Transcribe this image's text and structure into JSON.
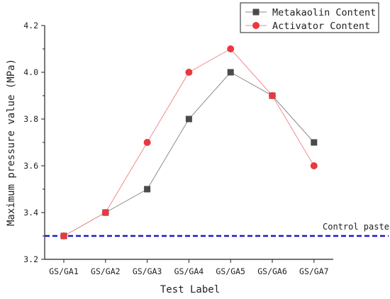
{
  "chart_data": {
    "type": "line",
    "title": "",
    "xlabel": "Test Label",
    "ylabel": "Maximum pressure value (MPa)",
    "categories": [
      "GS/GA1",
      "GS/GA2",
      "GS/GA3",
      "GS/GA4",
      "GS/GA5",
      "GS/GA6",
      "GS/GA7"
    ],
    "ylim": [
      3.2,
      4.2
    ],
    "yticks": [
      "3.2",
      "3.4",
      "3.6",
      "3.8",
      "4.0",
      "4.2"
    ],
    "grid": false,
    "legend_position": "top-right",
    "series": [
      {
        "name": "Metakaolin Content",
        "values": [
          3.3,
          3.4,
          3.5,
          3.8,
          4.0,
          3.9,
          3.7
        ],
        "marker": "square",
        "marker_color": "#4a4a4a",
        "line_color": "#8a8a8a"
      },
      {
        "name": "Activator Content",
        "values": [
          3.3,
          3.4,
          3.7,
          4.0,
          4.1,
          3.9,
          3.6
        ],
        "marker": "circle",
        "marker_color": "#e8393f",
        "line_color": "#f08a8e"
      }
    ],
    "reference_line": {
      "label": "Control paste",
      "value": 3.3,
      "color": "#1a1acc",
      "style": "dashed"
    }
  }
}
